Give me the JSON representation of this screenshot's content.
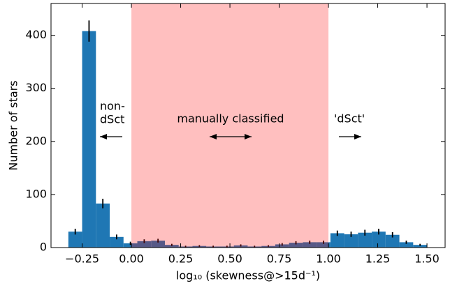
{
  "chart_data": {
    "type": "histogram",
    "bins": [
      -0.32,
      -0.25,
      -0.18,
      -0.11,
      -0.04,
      0.03,
      0.1,
      0.17,
      0.24,
      0.31,
      0.38,
      0.45,
      0.52,
      0.59,
      0.66,
      0.73,
      0.8,
      0.87,
      0.94,
      1.01,
      1.08,
      1.15,
      1.22,
      1.29,
      1.36,
      1.43,
      1.5
    ],
    "values": [
      30,
      408,
      83,
      20,
      8,
      12,
      13,
      5,
      2,
      3,
      2,
      2,
      4,
      2,
      3,
      6,
      9,
      10,
      10,
      27,
      25,
      28,
      30,
      24,
      10,
      5
    ],
    "errors": [
      5.5,
      20,
      9,
      4.5,
      3,
      3.5,
      3.5,
      2,
      1.5,
      1.5,
      1.5,
      1.5,
      2,
      1.5,
      1.5,
      2.5,
      3,
      3,
      3,
      5,
      5,
      5.5,
      5.5,
      5,
      3,
      2
    ],
    "color": "#1f77b4",
    "shaded_span": [
      0,
      1
    ],
    "shaded_color": "#ff0000",
    "xlabel": "log₁₀ (skewness@>15d⁻¹)",
    "ylabel": "Number of stars",
    "xlim": [
      -0.408,
      1.592
    ],
    "ylim": [
      0,
      460
    ],
    "xticks": [
      {
        "value": -0.25,
        "label": "−0.25"
      },
      {
        "value": 0,
        "label": "0.00"
      },
      0.25,
      {
        "value": 0.5,
        "label": "0.50"
      },
      0.75,
      {
        "value": 1,
        "label": "1.00"
      },
      1.25,
      {
        "value": 1.5,
        "label": "1.50"
      }
    ],
    "yticks": [
      0,
      100,
      200,
      300,
      400
    ],
    "annotations": [
      {
        "lines": [
          "non-",
          "dSct"
        ]
      },
      {
        "lines": [
          "manually classified"
        ]
      },
      {
        "lines": [
          "'dSct'"
        ]
      }
    ]
  }
}
